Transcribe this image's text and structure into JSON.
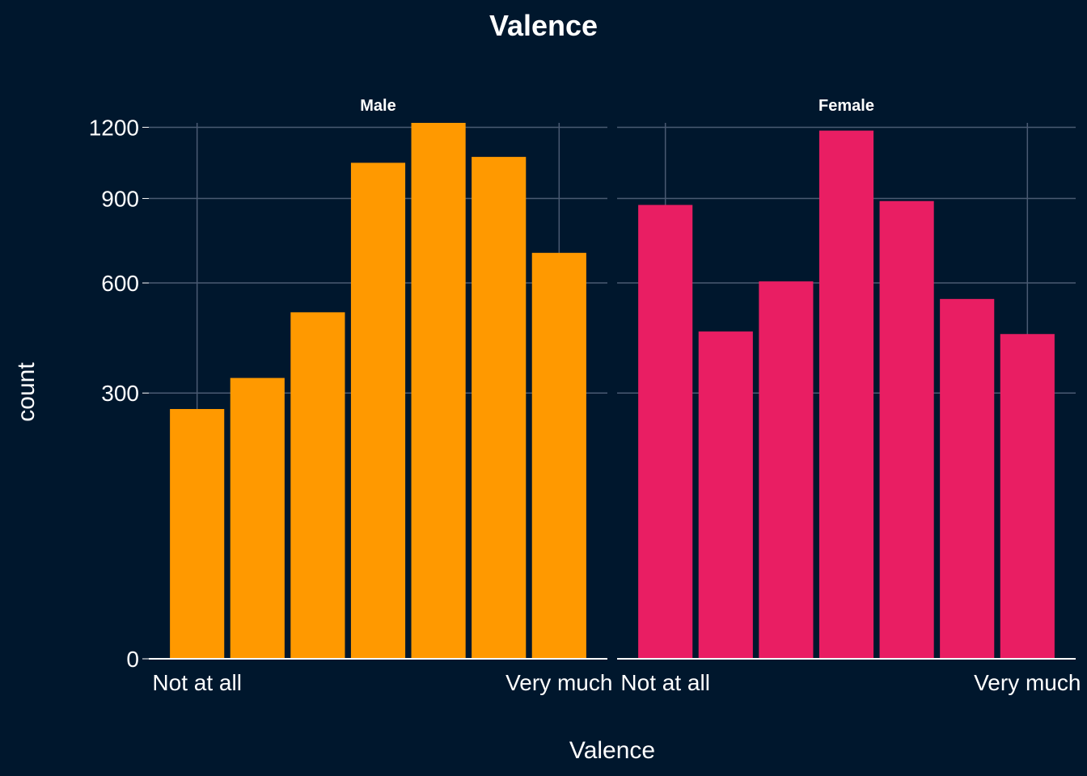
{
  "chart_data": {
    "type": "bar",
    "title": "Valence",
    "xlabel": "Valence",
    "ylabel": "count",
    "y_scale": "sqrt",
    "ylim": [
      0,
      1220
    ],
    "y_ticks": [
      0,
      300,
      600,
      900,
      1200
    ],
    "x_tick_labels": [
      "Not at all",
      "Very much"
    ],
    "categories": [
      1,
      2,
      3,
      4,
      5,
      6,
      7
    ],
    "grid": true,
    "series": [
      {
        "name": "Male",
        "color": "#ff9900",
        "values": [
          265,
          335,
          510,
          1045,
          1220,
          1070,
          700
        ]
      },
      {
        "name": "Female",
        "color": "#e91e63",
        "values": [
          875,
          455,
          605,
          1185,
          890,
          550,
          448
        ]
      }
    ]
  }
}
